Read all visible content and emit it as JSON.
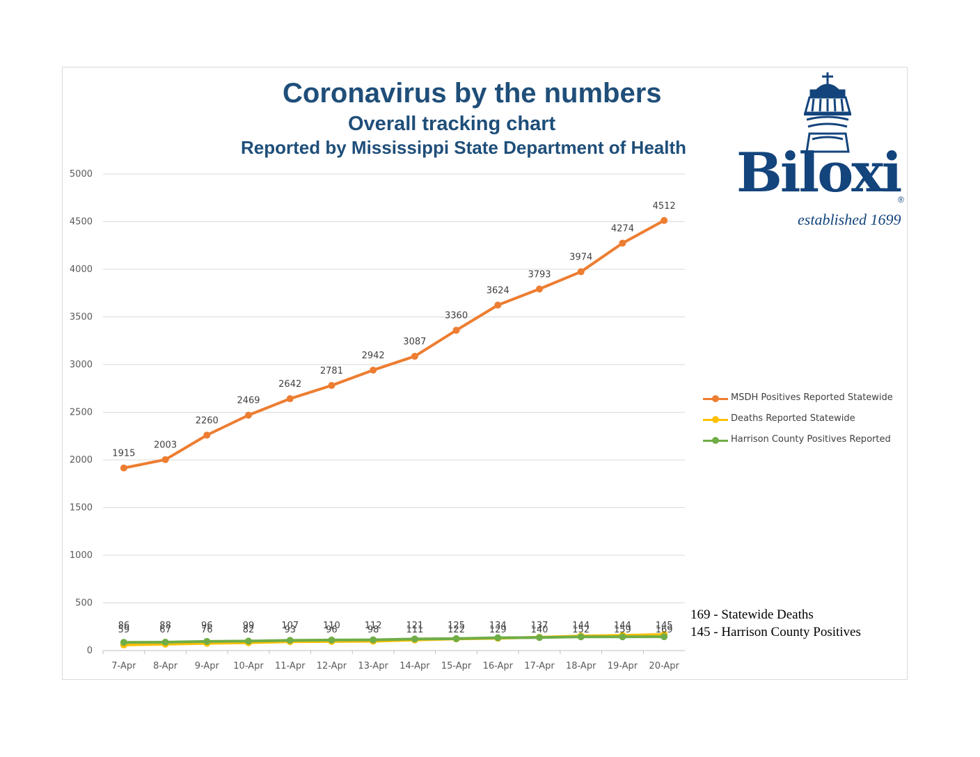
{
  "title": "Coronavirus by the numbers",
  "subtitle": "Overall tracking chart",
  "subtitle2": "Reported by Mississippi State Department of Health",
  "logo": {
    "name": "Biloxi",
    "tagline": "established 1699",
    "registered": "®",
    "color": "#13447c"
  },
  "notes": [
    "169 - Statewide Deaths",
    "145 - Harrison County Positives"
  ],
  "chart_data": {
    "type": "line",
    "categories": [
      "7-Apr",
      "8-Apr",
      "9-Apr",
      "10-Apr",
      "11-Apr",
      "12-Apr",
      "13-Apr",
      "14-Apr",
      "15-Apr",
      "16-Apr",
      "17-Apr",
      "18-Apr",
      "19-Apr",
      "20-Apr"
    ],
    "ylim": [
      0,
      5000
    ],
    "yticks": [
      0,
      500,
      1000,
      1500,
      2000,
      2500,
      3000,
      3500,
      4000,
      4500,
      5000
    ],
    "grid": true,
    "legend_position": "right",
    "series": [
      {
        "name": "MSDH Positives Reported Statewide",
        "color": "#ed7d31",
        "values": [
          1915,
          2003,
          2260,
          2469,
          2642,
          2781,
          2942,
          3087,
          3360,
          3624,
          3793,
          3974,
          4274,
          4512
        ]
      },
      {
        "name": "Deaths Reported Statewide",
        "color": "#ffc000",
        "values": [
          59,
          67,
          76,
          82,
          93,
          96,
          98,
          111,
          122,
          129,
          140,
          152,
          159,
          169
        ]
      },
      {
        "name": "Harrison County Positives Reported",
        "color": "#70ad47",
        "values": [
          86,
          88,
          96,
          99,
          107,
          110,
          112,
          121,
          125,
          134,
          137,
          144,
          144,
          145
        ]
      }
    ]
  }
}
